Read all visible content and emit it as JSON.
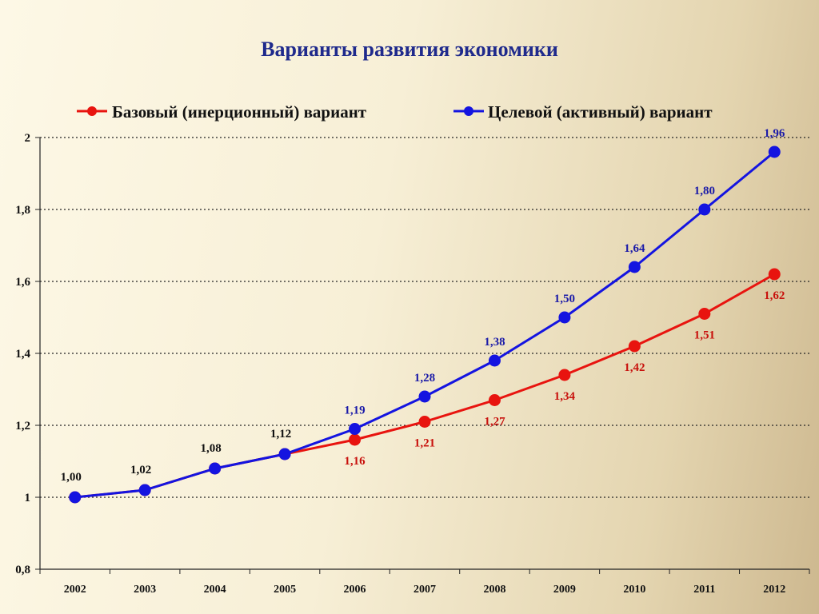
{
  "chart_data": {
    "type": "line",
    "title": "Варианты развития экономики",
    "categories": [
      "2002",
      "2003",
      "2004",
      "2005",
      "2006",
      "2007",
      "2008",
      "2009",
      "2010",
      "2011",
      "2012"
    ],
    "ylim": [
      0.8,
      2.0
    ],
    "yticks": [
      0.8,
      1.0,
      1.2,
      1.4,
      1.6,
      1.8,
      2.0
    ],
    "ytick_labels": [
      "0,8",
      "1",
      "1,2",
      "1,4",
      "1,6",
      "1,8",
      "2"
    ],
    "grid": "horizontal dotted",
    "legend_position": "top",
    "shared_labels": [
      {
        "index": 0,
        "text": "1,00"
      },
      {
        "index": 1,
        "text": "1,02"
      },
      {
        "index": 2,
        "text": "1,08"
      },
      {
        "index": 3,
        "text": "1,12"
      }
    ],
    "series": [
      {
        "name": "Базовый (инерционный) вариант",
        "color": "#e8140f",
        "values": [
          1.0,
          1.02,
          1.08,
          1.12,
          1.16,
          1.21,
          1.27,
          1.34,
          1.42,
          1.51,
          1.62
        ],
        "labels": [
          "",
          "",
          "",
          "",
          "1,16",
          "1,21",
          "1,27",
          "1,34",
          "1,42",
          "1,51",
          "1,62"
        ]
      },
      {
        "name": "Целевой (активный) вариант",
        "color": "#1414e0",
        "values": [
          1.0,
          1.02,
          1.08,
          1.12,
          1.19,
          1.28,
          1.38,
          1.5,
          1.64,
          1.8,
          1.96
        ],
        "labels": [
          "",
          "",
          "",
          "",
          "1,19",
          "1,28",
          "1,38",
          "1,50",
          "1,64",
          "1,80",
          "1,96"
        ]
      }
    ]
  }
}
